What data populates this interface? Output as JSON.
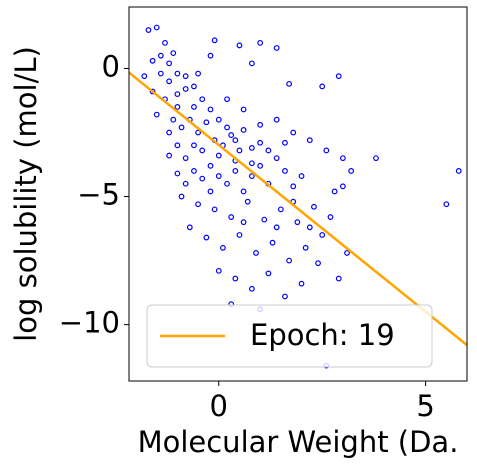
{
  "chart_data": {
    "type": "scatter",
    "xlabel": "Molecular Weight (Da.",
    "ylabel": "log solubility (mol/L)",
    "xlim": [
      -2.17,
      6.0
    ],
    "ylim": [
      -12.2,
      2.4
    ],
    "xticks": [
      0,
      5
    ],
    "yticks": [
      0,
      {
        "value": -5,
        "label": "−5"
      },
      {
        "value": -10,
        "label": "−10"
      }
    ],
    "legend": "lower left",
    "series": [
      {
        "type": "scatter",
        "color": "#0000ff",
        "x": [
          -1.7,
          -1.5,
          -1.3,
          -1.1,
          -1.6,
          -1.4,
          -1.2,
          -1.0,
          -0.8,
          -0.6,
          -1.3,
          -1.1,
          -0.9,
          -0.7,
          -0.5,
          -0.3,
          -0.1,
          0.1,
          0.3,
          0.5,
          -1.5,
          -1.2,
          -1.0,
          -0.8,
          -0.6,
          -0.4,
          -0.2,
          0.0,
          0.2,
          0.4,
          0.6,
          0.8,
          1.0,
          1.2,
          1.4,
          1.6,
          1.8,
          2.0,
          -0.9,
          -0.5,
          -0.1,
          0.3,
          0.7,
          1.1,
          1.5,
          1.9,
          2.3,
          -0.7,
          -0.3,
          0.1,
          0.5,
          0.9,
          1.3,
          1.7,
          2.1,
          2.5,
          0.0,
          0.4,
          0.8,
          1.2,
          1.6,
          2.0,
          2.4,
          2.9,
          1.0,
          0.3,
          2.6,
          -0.5,
          -0.2,
          -0.1,
          0.5,
          1.0,
          1.4,
          0.8,
          1.7,
          2.5,
          2.9,
          0.2,
          0.6,
          1.0,
          1.4,
          1.8,
          2.2,
          2.6,
          3.0,
          3.8,
          3.2,
          2.8,
          3.0,
          5.5,
          5.8,
          -1.8,
          -1.6,
          -1.4,
          -1.2,
          -1.0,
          -0.8,
          -0.6,
          -0.4,
          -0.2,
          0.0,
          0.2,
          0.4,
          0.6,
          0.8,
          1.0,
          -1.2,
          -1.0,
          -0.8,
          -0.4,
          0.0,
          0.4,
          0.8,
          1.2,
          1.6,
          -1.0,
          -0.6,
          -0.2,
          0.6,
          1.4,
          1.8,
          2.2,
          2.7,
          3.1
        ],
        "values": [
          1.5,
          1.6,
          1.0,
          0.6,
          0.3,
          -0.2,
          -0.5,
          -1.0,
          -0.8,
          -1.5,
          -1.2,
          -2.0,
          -2.3,
          -2.0,
          -2.5,
          -2.1,
          -2.8,
          -3.0,
          -2.6,
          -3.2,
          -1.8,
          -2.5,
          -3.0,
          -3.5,
          -4.0,
          -4.3,
          -3.8,
          -4.2,
          -4.5,
          -4.0,
          -4.8,
          -4.2,
          -3.8,
          -4.5,
          -3.5,
          -4.0,
          -4.6,
          -4.2,
          -5.0,
          -5.3,
          -5.5,
          -5.8,
          -5.2,
          -5.9,
          -5.5,
          -6.0,
          -5.4,
          -6.2,
          -6.6,
          -7.0,
          -6.5,
          -7.2,
          -6.8,
          -7.5,
          -7.0,
          -6.5,
          -7.9,
          -8.2,
          -8.6,
          -8.0,
          -8.9,
          -8.4,
          -7.6,
          -8.2,
          -9.4,
          -9.2,
          -11.6,
          -0.2,
          0.5,
          1.1,
          0.9,
          1.0,
          0.8,
          0.2,
          -0.6,
          -0.7,
          -0.3,
          -1.2,
          -1.6,
          -2.2,
          -2.0,
          -2.5,
          -2.8,
          -3.2,
          -3.5,
          -3.5,
          -4.0,
          -4.8,
          -4.6,
          -5.3,
          -4.0,
          -0.3,
          -0.9,
          0.5,
          0.2,
          -0.2,
          -0.3,
          -0.7,
          -1.2,
          -1.6,
          -2.0,
          -2.3,
          -2.8,
          -2.4,
          -3.1,
          -2.9,
          -3.4,
          -4.1,
          -4.5,
          -3.2,
          -3.4,
          -3.6,
          -3.7,
          -3.2,
          -2.9,
          -1.5,
          -3.0,
          -4.8,
          -6.0,
          -6.2,
          -5.2,
          -6.2,
          -5.8,
          -7.2
        ]
      },
      {
        "type": "line",
        "name": "Epoch: 19",
        "color": "#ffa500",
        "x": [
          -2.17,
          6.0
        ],
        "values": [
          -0.16,
          -10.8
        ]
      }
    ]
  }
}
